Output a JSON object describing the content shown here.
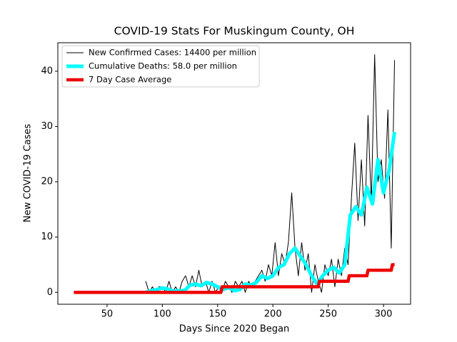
{
  "chart_data": {
    "type": "line",
    "title": "COVID-19 Stats For Muskingum County, OH",
    "x_label": "Days Since 2020 Began",
    "y_label": "New COVID-19 Cases",
    "xlim": [
      5.5,
      324.5
    ],
    "ylim": [
      -2.15,
      45.15
    ],
    "xticks": [
      50,
      100,
      150,
      200,
      250,
      300
    ],
    "yticks": [
      0,
      10,
      20,
      30,
      40
    ],
    "legend": "upper left",
    "series": [
      {
        "name": "New Confirmed Cases: 14400 per million",
        "color": "#000000",
        "x": [
          85,
          88,
          91,
          94,
          97,
          100,
          103,
          106,
          109,
          112,
          115,
          118,
          121,
          124,
          127,
          130,
          133,
          136,
          139,
          142,
          145,
          148,
          151,
          154,
          157,
          160,
          163,
          166,
          169,
          172,
          175,
          178,
          181,
          184,
          187,
          190,
          193,
          196,
          199,
          202,
          205,
          208,
          211,
          214,
          217,
          220,
          223,
          226,
          229,
          232,
          235,
          238,
          241,
          244,
          247,
          250,
          253,
          256,
          259,
          262,
          265,
          268,
          271,
          274,
          277,
          280,
          283,
          286,
          289,
          292,
          295,
          298,
          301,
          304,
          307,
          310
        ],
        "values": [
          2,
          0,
          1,
          0,
          1,
          1,
          0,
          2,
          0,
          1,
          0,
          2,
          3,
          1,
          3,
          1,
          4,
          1,
          2,
          0,
          2,
          0,
          1,
          0,
          2,
          1,
          0,
          2,
          1,
          2,
          0,
          2,
          1,
          2,
          3,
          4,
          2,
          5,
          3,
          9,
          3,
          7,
          5,
          9,
          18,
          8,
          3,
          9,
          4,
          7,
          0,
          5,
          2,
          0,
          5,
          3,
          6,
          1,
          6,
          3,
          8,
          5,
          17,
          27,
          13,
          24,
          12,
          32,
          16,
          43,
          20,
          24,
          17,
          33,
          8,
          42
        ]
      },
      {
        "name": "Cumulative Deaths: 58.0 per million",
        "color": "#00ffff",
        "x": [
          85,
          90,
          95,
          100,
          105,
          110,
          115,
          120,
          125,
          130,
          135,
          140,
          145,
          150,
          155,
          160,
          165,
          170,
          175,
          180,
          185,
          190,
          195,
          200,
          205,
          210,
          215,
          220,
          225,
          230,
          235,
          240,
          245,
          250,
          255,
          260,
          265,
          270,
          275,
          280,
          285,
          290,
          295,
          300,
          305,
          310
        ],
        "values": [
          0,
          0.3,
          0.5,
          0.8,
          0.6,
          0.2,
          0.3,
          0.3,
          1.3,
          1.5,
          1.2,
          1.8,
          1.5,
          1.0,
          0.5,
          0.9,
          0.3,
          0.5,
          1.5,
          1.3,
          1.8,
          3.0,
          2.5,
          3.0,
          4.5,
          5.0,
          7.0,
          8.0,
          6.5,
          5.0,
          3.0,
          1.5,
          3.0,
          4.0,
          4.5,
          3.5,
          5.0,
          14.0,
          15.5,
          14.0,
          19,
          16,
          24,
          18,
          22,
          29
        ]
      },
      {
        "name": "7 Day Case Average",
        "color": "#ee0000",
        "x": [
          20,
          153,
          154,
          241,
          242,
          268,
          269,
          285,
          286,
          307,
          308,
          310
        ],
        "values": [
          0,
          0,
          1,
          1,
          2,
          2,
          3,
          3,
          4,
          4,
          5,
          5
        ]
      }
    ]
  }
}
